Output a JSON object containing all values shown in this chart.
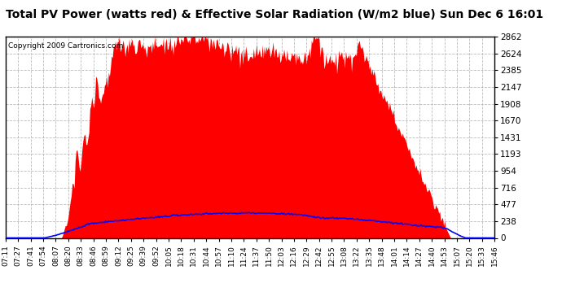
{
  "title": "Total PV Power (watts red) & Effective Solar Radiation (W/m2 blue) Sun Dec 6 16:01",
  "copyright": "Copyright 2009 Cartronics.com",
  "ymax": 2862.4,
  "ymin": 0.0,
  "yticks": [
    0.0,
    238.5,
    477.1,
    715.6,
    954.1,
    1192.7,
    1431.2,
    1669.7,
    1908.2,
    2146.8,
    2385.3,
    2623.8,
    2862.4
  ],
  "xtick_labels": [
    "07:11",
    "07:27",
    "07:41",
    "07:54",
    "08:07",
    "08:20",
    "08:33",
    "08:46",
    "08:59",
    "09:12",
    "09:25",
    "09:39",
    "09:52",
    "10:05",
    "10:18",
    "10:31",
    "10:44",
    "10:57",
    "11:10",
    "11:24",
    "11:37",
    "11:50",
    "12:03",
    "12:16",
    "12:29",
    "12:42",
    "12:55",
    "13:08",
    "13:22",
    "13:35",
    "13:48",
    "14:01",
    "14:14",
    "14:27",
    "14:40",
    "14:53",
    "15:07",
    "15:20",
    "15:33",
    "15:46"
  ],
  "title_fontsize": 10,
  "bg_color": "#ffffff",
  "grid_color": "#aaaaaa",
  "fill_color": "#ff0000",
  "line_color": "#0000ff"
}
